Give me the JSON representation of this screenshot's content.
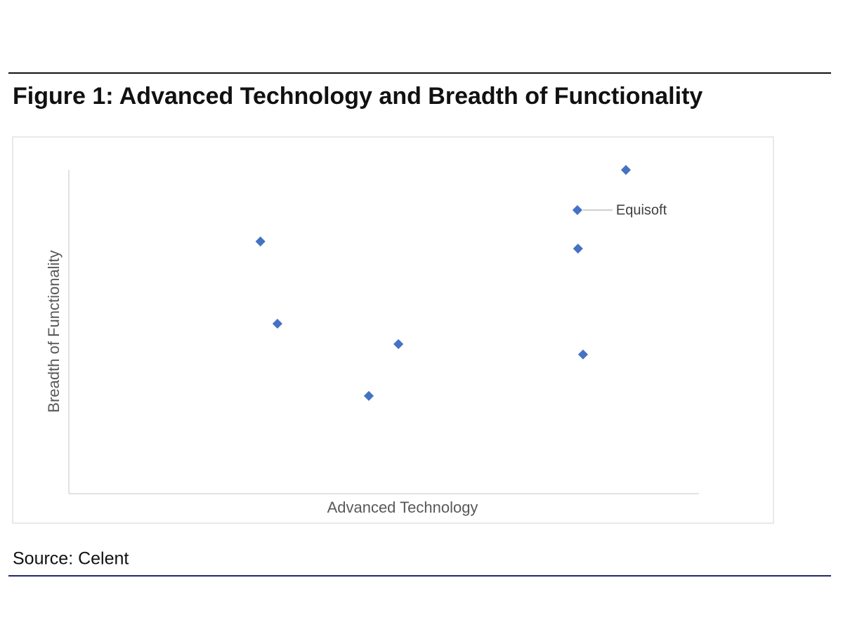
{
  "chart_data": {
    "type": "scatter",
    "title": "Figure 1: Advanced Technology and Breadth of Functionality",
    "x_label": "Advanced Technology",
    "y_label": "Breadth of Functionality",
    "source": "Source: Celent",
    "x": [
      3.04,
      3.31,
      5.23,
      4.76,
      8.84,
      8.07,
      8.08,
      8.16
    ],
    "y": [
      7.79,
      5.25,
      4.62,
      3.02,
      10.0,
      8.76,
      7.57,
      4.3
    ],
    "point_labels": [
      null,
      null,
      null,
      null,
      null,
      "Equisoft",
      null,
      null
    ],
    "color": "#4472c4",
    "xlim": [
      0,
      10
    ],
    "ylim": [
      0,
      10
    ]
  }
}
